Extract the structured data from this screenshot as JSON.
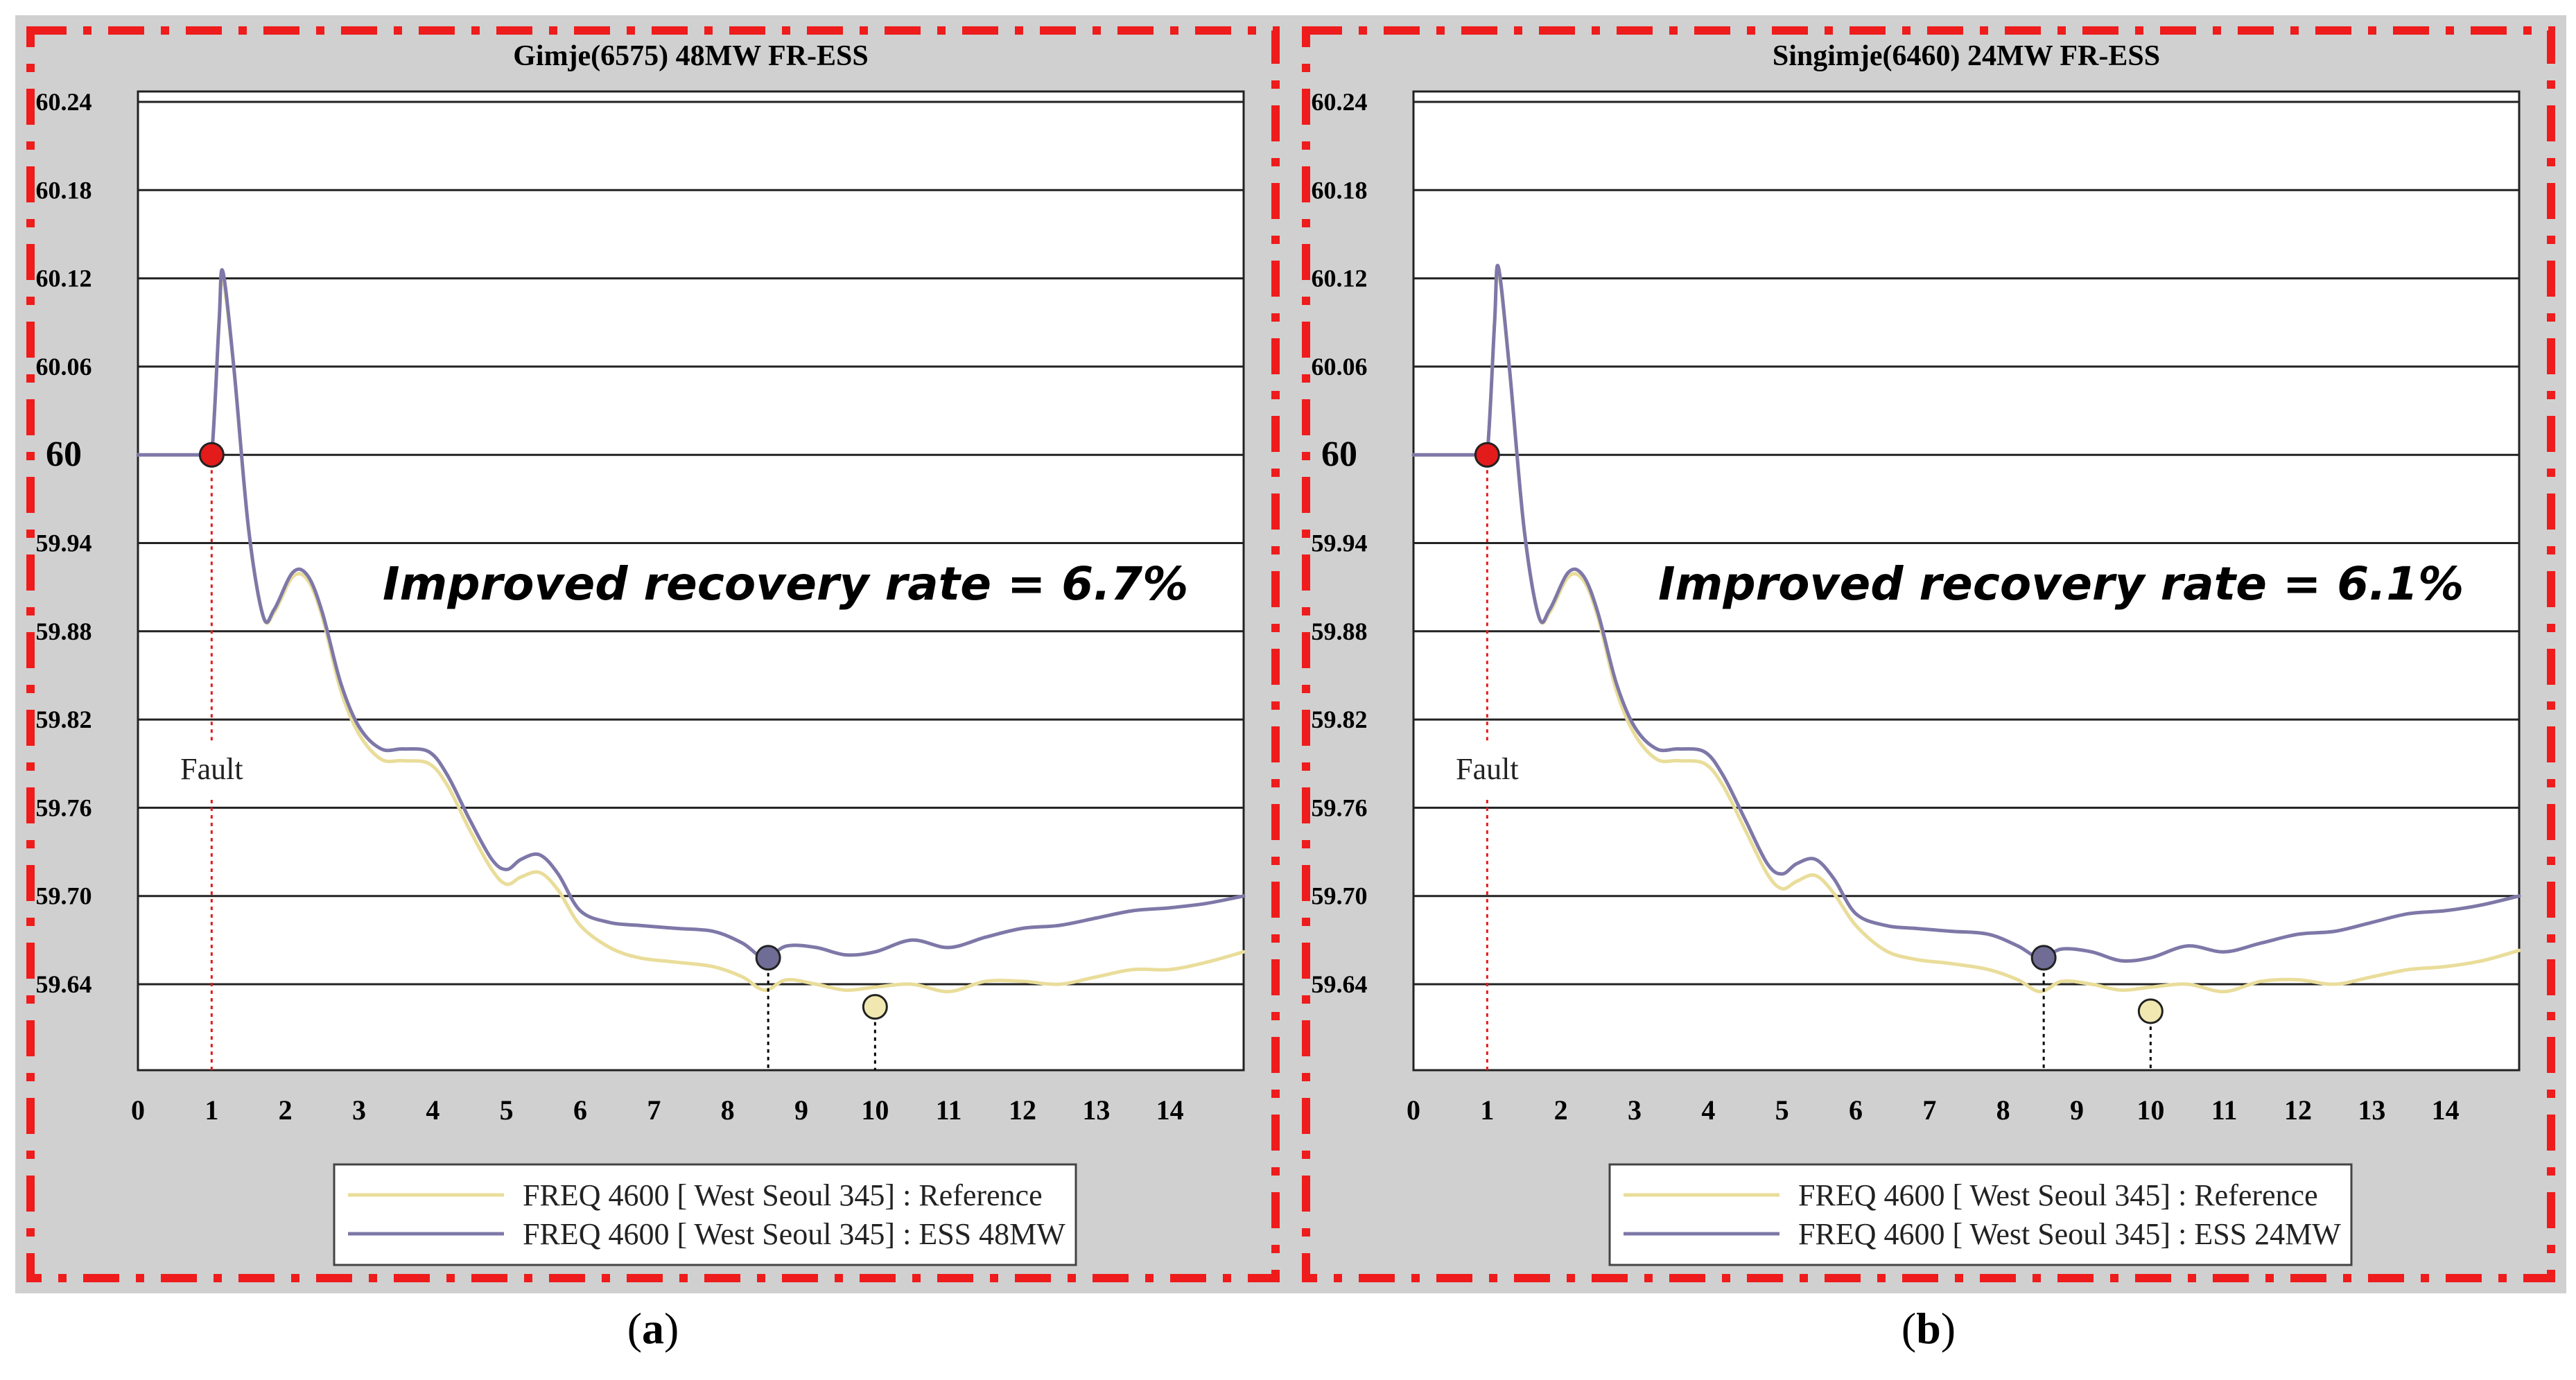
{
  "colors": {
    "panel_bg": "#d0d0d0",
    "plot_bg": "#ffffff",
    "border_dash": "#ee1c1c",
    "grid": "#222222",
    "reference_line": "#e9dd9a",
    "ess_line": "#7e78a8",
    "fault_marker": "#e31b1b",
    "ess_marker": "#6f6d96",
    "ref_marker": "#f1e8b1"
  },
  "chart_data": [
    {
      "panel_label": "a",
      "type": "line",
      "title": "Gimje(6575) 48MW FR-ESS",
      "ylim": [
        59.58,
        60.24
      ],
      "xlim": [
        0,
        15
      ],
      "y_ticks": [
        {
          "value": 60.24,
          "label": "60.24"
        },
        {
          "value": 60.18,
          "label": "60.18"
        },
        {
          "value": 60.12,
          "label": "60.12"
        },
        {
          "value": 60.06,
          "label": "60.06"
        },
        {
          "value": 60.0,
          "label": "60"
        },
        {
          "value": 59.94,
          "label": "59.94"
        },
        {
          "value": 59.88,
          "label": "59.88"
        },
        {
          "value": 59.82,
          "label": "59.82"
        },
        {
          "value": 59.76,
          "label": "59.76"
        },
        {
          "value": 59.7,
          "label": "59.70"
        },
        {
          "value": 59.64,
          "label": "59.64"
        }
      ],
      "x_ticks": [
        "0",
        "1",
        "2",
        "3",
        "4",
        "5",
        "6",
        "7",
        "8",
        "9",
        "10",
        "11",
        "12",
        "13",
        "14"
      ],
      "annotation": "Improved recovery rate  =  6.7%",
      "fault_label": "Fault",
      "fault": {
        "x": 1.0,
        "y": 60.0
      },
      "ess_min": {
        "x": 8.55,
        "y": 59.658
      },
      "ref_min": {
        "x": 10.0,
        "y": 59.635
      },
      "legend": [
        {
          "key": "reference",
          "label": "FREQ 4600 [ West Seoul 345] : Reference"
        },
        {
          "key": "ess",
          "label": "FREQ 4600 [ West Seoul 345] : ESS 48MW"
        }
      ],
      "series": [
        {
          "key": "reference",
          "name": "FREQ 4600 [ West Seoul 345] : Reference",
          "x": [
            0,
            0.9,
            1.0,
            1.1,
            1.15,
            1.3,
            1.5,
            1.7,
            1.85,
            2.1,
            2.3,
            2.5,
            2.75,
            3.0,
            3.3,
            3.6,
            3.95,
            4.2,
            4.5,
            4.8,
            5.0,
            5.2,
            5.45,
            5.7,
            6.0,
            6.4,
            6.8,
            7.3,
            7.8,
            8.2,
            8.5,
            8.8,
            9.2,
            9.6,
            10.0,
            10.5,
            11.0,
            11.5,
            12.0,
            12.5,
            13.0,
            13.5,
            14.0,
            14.5,
            15.0
          ],
          "values": [
            60.0,
            60.0,
            60.0,
            60.09,
            60.12,
            60.06,
            59.95,
            59.89,
            59.893,
            59.917,
            59.915,
            59.89,
            59.84,
            59.81,
            59.793,
            59.792,
            59.79,
            59.775,
            59.745,
            59.718,
            59.708,
            59.713,
            59.716,
            59.704,
            59.68,
            59.665,
            59.658,
            59.655,
            59.652,
            59.645,
            59.636,
            59.643,
            59.64,
            59.636,
            59.638,
            59.64,
            59.635,
            59.642,
            59.642,
            59.64,
            59.645,
            59.65,
            59.65,
            59.655,
            59.662
          ]
        },
        {
          "key": "ess",
          "name": "FREQ 4600 [ West Seoul 345] : ESS 48MW",
          "x": [
            0,
            0.9,
            1.0,
            1.1,
            1.15,
            1.3,
            1.5,
            1.7,
            1.85,
            2.1,
            2.3,
            2.5,
            2.75,
            3.0,
            3.3,
            3.6,
            3.95,
            4.2,
            4.5,
            4.8,
            5.0,
            5.2,
            5.45,
            5.7,
            6.0,
            6.4,
            6.8,
            7.3,
            7.8,
            8.2,
            8.5,
            8.8,
            9.2,
            9.6,
            10.0,
            10.5,
            11.0,
            11.5,
            12.0,
            12.5,
            13.0,
            13.5,
            14.0,
            14.5,
            15.0
          ],
          "values": [
            60.0,
            60.0,
            60.0,
            60.09,
            60.125,
            60.06,
            59.95,
            59.89,
            59.895,
            59.92,
            59.918,
            59.893,
            59.845,
            59.815,
            59.8,
            59.8,
            59.798,
            59.782,
            59.752,
            59.725,
            59.718,
            59.725,
            59.728,
            59.715,
            59.69,
            59.682,
            59.68,
            59.678,
            59.676,
            59.668,
            59.658,
            59.666,
            59.665,
            59.66,
            59.662,
            59.67,
            59.665,
            59.672,
            59.678,
            59.68,
            59.685,
            59.69,
            59.692,
            59.695,
            59.7
          ]
        }
      ]
    },
    {
      "panel_label": "b",
      "type": "line",
      "title": "Singimje(6460) 24MW FR-ESS",
      "ylim": [
        59.58,
        60.24
      ],
      "xlim": [
        0,
        15
      ],
      "y_ticks": [
        {
          "value": 60.24,
          "label": "60.24"
        },
        {
          "value": 60.18,
          "label": "60.18"
        },
        {
          "value": 60.12,
          "label": "60.12"
        },
        {
          "value": 60.06,
          "label": "60.06"
        },
        {
          "value": 60.0,
          "label": "60"
        },
        {
          "value": 59.94,
          "label": "59.94"
        },
        {
          "value": 59.88,
          "label": "59.88"
        },
        {
          "value": 59.82,
          "label": "59.82"
        },
        {
          "value": 59.76,
          "label": "59.76"
        },
        {
          "value": 59.7,
          "label": "59.70"
        },
        {
          "value": 59.64,
          "label": "59.64"
        }
      ],
      "x_ticks": [
        "0",
        "1",
        "2",
        "3",
        "4",
        "5",
        "6",
        "7",
        "8",
        "9",
        "10",
        "11",
        "12",
        "13",
        "14"
      ],
      "annotation": "Improved recovery rate  =  6.1%",
      "fault_label": "Fault",
      "fault": {
        "x": 1.0,
        "y": 60.0
      },
      "ess_min": {
        "x": 8.55,
        "y": 59.658
      },
      "ref_min": {
        "x": 10.0,
        "y": 59.632
      },
      "legend": [
        {
          "key": "reference",
          "label": "FREQ 4600 [ West Seoul 345] : Reference"
        },
        {
          "key": "ess",
          "label": "FREQ 4600 [ West Seoul 345] : ESS 24MW"
        }
      ],
      "series": [
        {
          "key": "reference",
          "name": "FREQ 4600 [ West Seoul 345] : Reference",
          "x": [
            0,
            0.9,
            1.0,
            1.1,
            1.15,
            1.3,
            1.5,
            1.7,
            1.85,
            2.1,
            2.3,
            2.5,
            2.75,
            3.0,
            3.3,
            3.6,
            3.95,
            4.2,
            4.5,
            4.8,
            5.0,
            5.2,
            5.45,
            5.7,
            6.0,
            6.4,
            6.8,
            7.3,
            7.8,
            8.2,
            8.5,
            8.8,
            9.2,
            9.6,
            10.0,
            10.5,
            11.0,
            11.5,
            12.0,
            12.5,
            13.0,
            13.5,
            14.0,
            14.5,
            15.0
          ],
          "values": [
            60.0,
            60.0,
            60.0,
            60.09,
            60.125,
            60.06,
            59.95,
            59.89,
            59.893,
            59.917,
            59.915,
            59.89,
            59.84,
            59.81,
            59.793,
            59.792,
            59.79,
            59.775,
            59.745,
            59.715,
            59.705,
            59.71,
            59.714,
            59.702,
            59.68,
            59.663,
            59.657,
            59.654,
            59.65,
            59.643,
            59.635,
            59.642,
            59.64,
            59.636,
            59.638,
            59.64,
            59.635,
            59.642,
            59.643,
            59.64,
            59.645,
            59.65,
            59.652,
            59.656,
            59.663
          ]
        },
        {
          "key": "ess",
          "name": "FREQ 4600 [ West Seoul 345] : ESS 24MW",
          "x": [
            0,
            0.9,
            1.0,
            1.1,
            1.15,
            1.3,
            1.5,
            1.7,
            1.85,
            2.1,
            2.3,
            2.5,
            2.75,
            3.0,
            3.3,
            3.6,
            3.95,
            4.2,
            4.5,
            4.8,
            5.0,
            5.2,
            5.45,
            5.7,
            6.0,
            6.4,
            6.8,
            7.3,
            7.8,
            8.2,
            8.5,
            8.8,
            9.2,
            9.6,
            10.0,
            10.5,
            11.0,
            11.5,
            12.0,
            12.5,
            13.0,
            13.5,
            14.0,
            14.5,
            15.0
          ],
          "values": [
            60.0,
            60.0,
            60.0,
            60.09,
            60.128,
            60.06,
            59.95,
            59.89,
            59.895,
            59.92,
            59.918,
            59.893,
            59.845,
            59.815,
            59.8,
            59.8,
            59.798,
            59.782,
            59.752,
            59.722,
            59.715,
            59.722,
            59.725,
            59.712,
            59.688,
            59.68,
            59.678,
            59.676,
            59.674,
            59.666,
            59.658,
            59.664,
            59.662,
            59.656,
            59.658,
            59.666,
            59.662,
            59.668,
            59.674,
            59.676,
            59.682,
            59.688,
            59.69,
            59.694,
            59.7
          ]
        }
      ]
    }
  ]
}
